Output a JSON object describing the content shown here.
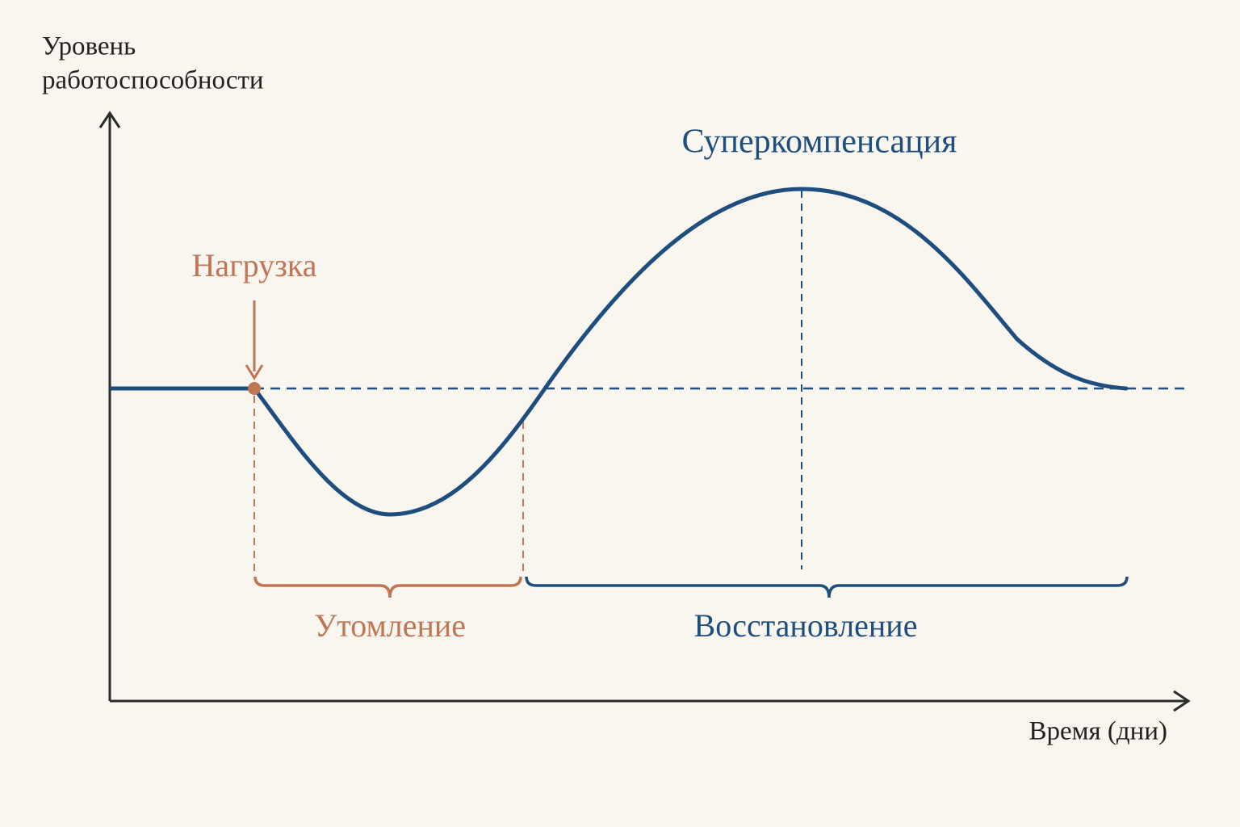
{
  "diagram": {
    "y_axis_label": [
      "Уровень",
      "работоспособности"
    ],
    "x_axis_label": "Время (дни)",
    "load_label": "Нагрузка",
    "peak_label": "Суперкомпенсация",
    "fatigue_label": "Утомление",
    "recovery_label": "Восстановление"
  }
}
